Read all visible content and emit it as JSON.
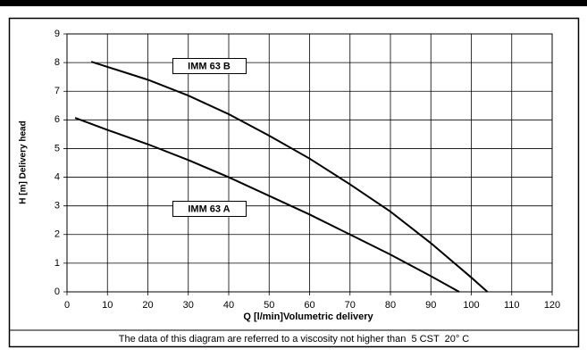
{
  "chart_data": {
    "type": "line",
    "xlabel": "Q [l/min]Volumetric delivery",
    "ylabel": "H [m] Delivery head",
    "note": "The data of this diagram are referred to a viscosity not higher than  5 CST  20° C",
    "xlim": [
      0,
      120
    ],
    "xticks": [
      0,
      10,
      20,
      30,
      40,
      50,
      60,
      70,
      80,
      90,
      100,
      110,
      120
    ],
    "ylim": [
      0,
      9
    ],
    "yticks": [
      0,
      1,
      2,
      3,
      4,
      5,
      6,
      7,
      8,
      9
    ],
    "grid": true,
    "series": [
      {
        "name": "IMM 63 B",
        "color": "#000000",
        "x": [
          6,
          10,
          20,
          30,
          40,
          50,
          60,
          70,
          80,
          90,
          100,
          104
        ],
        "values": [
          8.03,
          7.85,
          7.4,
          6.85,
          6.2,
          5.45,
          4.65,
          3.75,
          2.8,
          1.7,
          0.5,
          0
        ]
      },
      {
        "name": "IMM 63 A",
        "color": "#000000",
        "x": [
          2,
          10,
          20,
          30,
          40,
          50,
          60,
          70,
          80,
          90,
          97
        ],
        "values": [
          6.07,
          5.65,
          5.15,
          4.6,
          4.0,
          3.35,
          2.7,
          2.0,
          1.3,
          0.55,
          0
        ]
      }
    ]
  }
}
